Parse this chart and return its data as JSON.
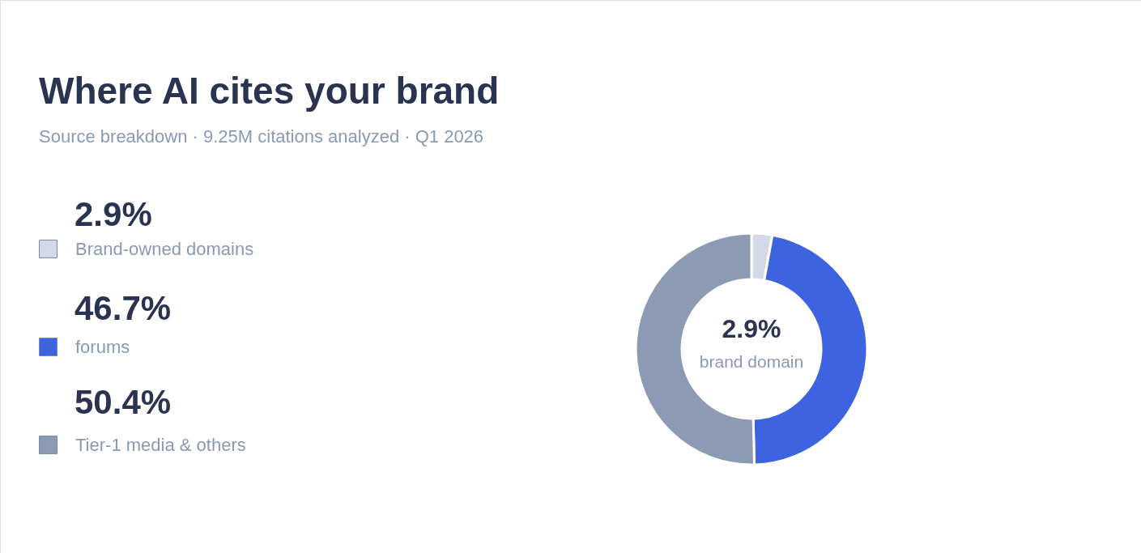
{
  "chart_data": {
    "type": "donut",
    "title": "Where AI cites your brand",
    "subtitle": "Source breakdown · 9.25M citations analyzed · Q1 2026",
    "categories": [
      "Brand-owned domains",
      "forums",
      "Tier-1 media & others"
    ],
    "values": [
      2.9,
      46.7,
      50.4
    ],
    "colors": [
      "#d3d9e6",
      "#3d63e0",
      "#8c9bb3"
    ],
    "value_labels": [
      "2.9%",
      "46.7%",
      "50.4%"
    ],
    "annotations": [
      "2.9%",
      "brand domain"
    ],
    "legend": "left"
  }
}
